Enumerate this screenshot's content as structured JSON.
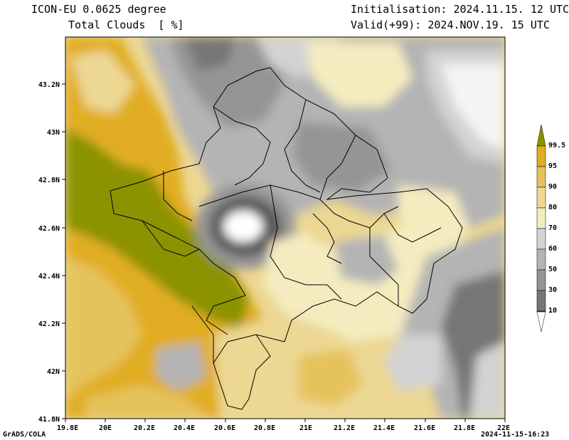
{
  "header": {
    "model": "ICON-EU 0.0625 degree",
    "field": "Total Clouds  [ %]",
    "init": "Initialisation: 2024.11.15. 12 UTC",
    "valid": "Valid(+99): 2024.NOV.19. 15 UTC"
  },
  "axes": {
    "lon_labels": [
      "19.8E",
      "20E",
      "20.2E",
      "20.4E",
      "20.6E",
      "20.8E",
      "21E",
      "21.2E",
      "21.4E",
      "21.6E",
      "21.8E",
      "22E"
    ],
    "lat_labels": [
      "43.2N",
      "43N",
      "42.8N",
      "42.6N",
      "42.4N",
      "42.2N",
      "42N",
      "41.8N"
    ]
  },
  "legend": {
    "labels": [
      "99.5",
      "95",
      "90",
      "80",
      "70",
      "60",
      "50",
      "30",
      "10"
    ],
    "colors": [
      "#8c9300",
      "#e1ad21",
      "#e5c25c",
      "#ecd793",
      "#f4ecbf",
      "#d3d3d3",
      "#b4b4b4",
      "#959595",
      "#767676",
      "#575757",
      "#ffffff"
    ]
  },
  "footer": {
    "left": "GrADS/COLA",
    "right": "2024-11-15-16:23"
  }
}
